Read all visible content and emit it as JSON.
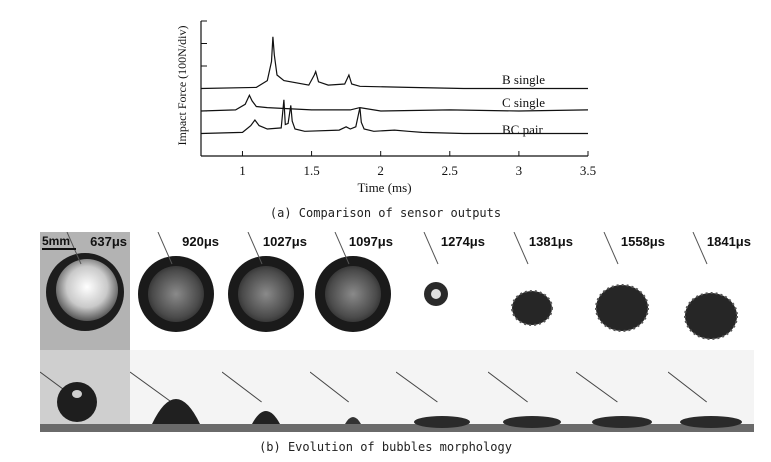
{
  "chart_data": {
    "type": "line",
    "ylabel": "Impact Force (100N/div)",
    "xlabel": "Time (ms)",
    "xlim": [
      0.7,
      3.5
    ],
    "xticks": [
      1,
      1.5,
      2,
      2.5,
      3,
      3.5
    ],
    "xtick_labels": [
      "1",
      "1.5",
      "2",
      "2.5",
      "3",
      "3.5"
    ],
    "grid": false,
    "series": [
      {
        "name": "B single",
        "baseline_div": 3,
        "x": [
          0.7,
          1.1,
          1.18,
          1.21,
          1.22,
          1.23,
          1.25,
          1.3,
          1.48,
          1.52,
          1.53,
          1.55,
          1.62,
          1.74,
          1.77,
          1.79,
          1.85,
          2.2,
          2.6,
          3.0,
          3.5
        ],
        "y": [
          0.0,
          0.05,
          0.35,
          1.2,
          2.3,
          1.5,
          0.6,
          0.35,
          0.15,
          0.6,
          0.75,
          0.3,
          0.15,
          0.2,
          0.6,
          0.2,
          0.1,
          0.05,
          0.0,
          0.0,
          0.0
        ]
      },
      {
        "name": "C single",
        "baseline_div": 2,
        "x": [
          0.7,
          0.95,
          1.02,
          1.05,
          1.07,
          1.1,
          1.18,
          1.5,
          1.78,
          1.85,
          2.0,
          2.5,
          3.0,
          3.5
        ],
        "y": [
          0.0,
          0.05,
          0.3,
          0.7,
          0.45,
          0.2,
          0.15,
          0.05,
          0.05,
          0.15,
          0.0,
          0.05,
          0.0,
          0.05
        ]
      },
      {
        "name": "BC pair",
        "baseline_div": 1,
        "x": [
          0.7,
          1.0,
          1.06,
          1.09,
          1.12,
          1.18,
          1.28,
          1.3,
          1.31,
          1.33,
          1.35,
          1.36,
          1.38,
          1.45,
          1.7,
          1.75,
          1.78,
          1.82,
          1.85,
          1.86,
          1.88,
          1.95,
          2.1,
          2.2,
          2.3,
          2.6,
          3.0,
          3.5
        ],
        "y": [
          0.0,
          0.05,
          0.35,
          0.6,
          0.35,
          0.2,
          0.25,
          1.5,
          0.4,
          0.45,
          1.25,
          0.55,
          0.2,
          0.1,
          0.15,
          0.3,
          0.2,
          0.3,
          1.15,
          0.5,
          0.2,
          0.1,
          0.15,
          0.1,
          0.05,
          0.0,
          0.0,
          0.0
        ]
      }
    ]
  },
  "captions": {
    "a": "(a) Comparison of sensor outputs",
    "b": "(b) Evolution of bubbles morphology"
  },
  "frames": {
    "scale_bar": "5mm",
    "times": [
      "637μs",
      "920μs",
      "1027μs",
      "1097μs",
      "1274μs",
      "1381μs",
      "1558μs",
      "1841μs"
    ]
  }
}
